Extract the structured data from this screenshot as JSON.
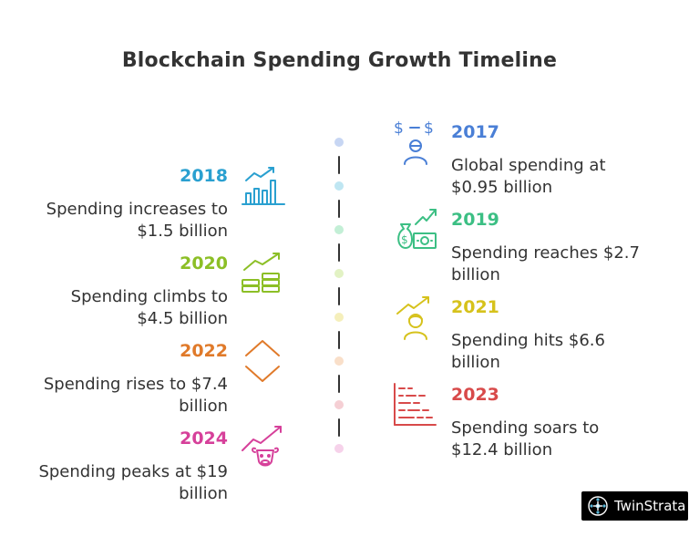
{
  "title": "Blockchain Spending Growth Timeline",
  "events": {
    "e2017": {
      "year": "2017",
      "desc1": "Global spending at",
      "desc2": "$0.95 billion"
    },
    "e2018": {
      "year": "2018",
      "desc1": "Spending increases to",
      "desc2": "$1.5 billion"
    },
    "e2019": {
      "year": "2019",
      "desc1": "Spending reaches $2.7",
      "desc2": "billion"
    },
    "e2020": {
      "year": "2020",
      "desc1": "Spending climbs to",
      "desc2": "$4.5 billion"
    },
    "e2021": {
      "year": "2021",
      "desc1": "Spending hits $6.6",
      "desc2": "billion"
    },
    "e2022": {
      "year": "2022",
      "desc1": "Spending rises to $7.4",
      "desc2": "billion"
    },
    "e2023": {
      "year": "2023",
      "desc1": "Spending soars to",
      "desc2": "$12.4 billion"
    },
    "e2024": {
      "year": "2024",
      "desc1": "Spending peaks at $19",
      "desc2": "billion"
    }
  },
  "colors": {
    "2017": "#4a7fd6",
    "2018": "#2aa0d0",
    "2019": "#3cbf84",
    "2020": "#8cbf26",
    "2021": "#d6c21c",
    "2022": "#e07a2a",
    "2023": "#d84a4a",
    "2024": "#d6409a"
  },
  "icons": {
    "2017": "dollar-exchange-person-icon",
    "2018": "bar-chart-growth-icon",
    "2019": "money-bag-cash-icon",
    "2020": "stacked-coins-growth-icon",
    "2021": "person-growth-icon",
    "2022": "up-down-chevron-icon",
    "2023": "descending-bars-icon",
    "2024": "bull-market-icon"
  },
  "brand": {
    "name": "TwinStrata"
  }
}
